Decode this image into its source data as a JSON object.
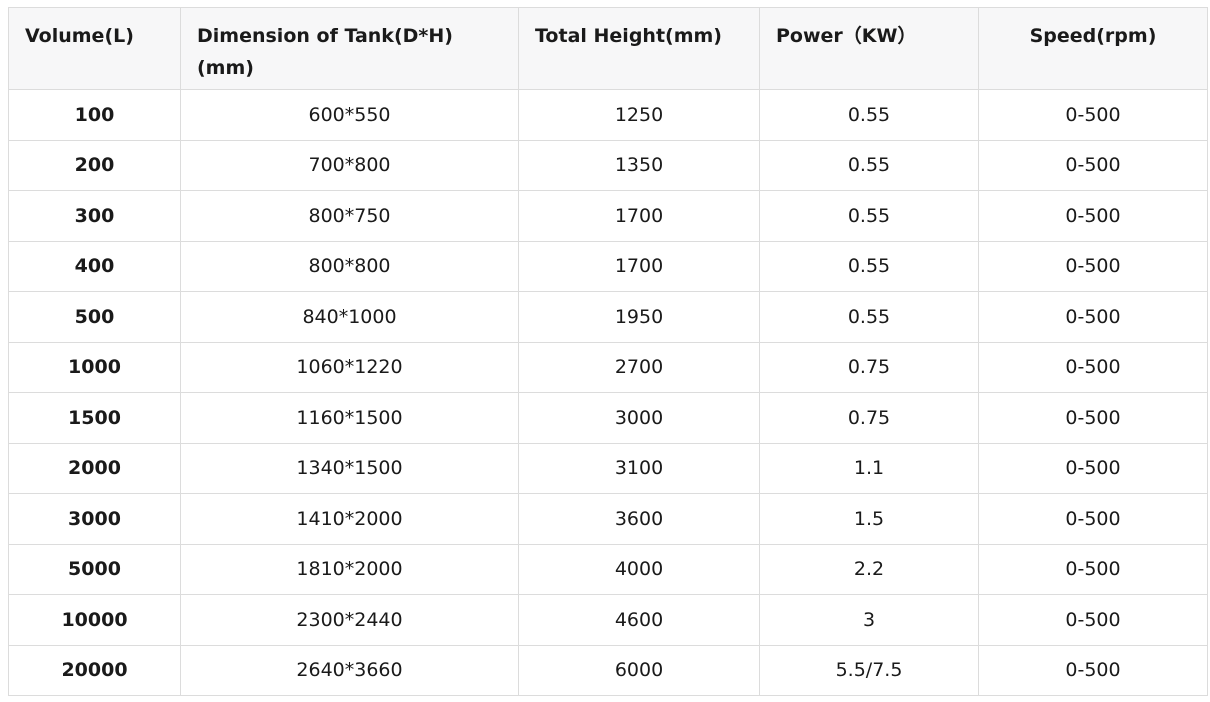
{
  "table": {
    "headers": [
      "Volume(L)",
      "Dimension of Tank(D*H)(mm)",
      "Total Height(mm)",
      "Power（KW）",
      "Speed(rpm)"
    ],
    "rows": [
      [
        "100",
        "600*550",
        "1250",
        "0.55",
        "0-500"
      ],
      [
        "200",
        "700*800",
        "1350",
        "0.55",
        "0-500"
      ],
      [
        "300",
        "800*750",
        "1700",
        "0.55",
        "0-500"
      ],
      [
        "400",
        "800*800",
        "1700",
        "0.55",
        "0-500"
      ],
      [
        "500",
        "840*1000",
        "1950",
        "0.55",
        "0-500"
      ],
      [
        "1000",
        "1060*1220",
        "2700",
        "0.75",
        "0-500"
      ],
      [
        "1500",
        "1160*1500",
        "3000",
        "0.75",
        "0-500"
      ],
      [
        "2000",
        "1340*1500",
        "3100",
        "1.1",
        "0-500"
      ],
      [
        "3000",
        "1410*2000",
        "3600",
        "1.5",
        "0-500"
      ],
      [
        "5000",
        "1810*2000",
        "4000",
        "2.2",
        "0-500"
      ],
      [
        "10000",
        "2300*2440",
        "4600",
        "3",
        "0-500"
      ],
      [
        "20000",
        "2640*3660",
        "6000",
        "5.5/7.5",
        "0-500"
      ]
    ]
  }
}
